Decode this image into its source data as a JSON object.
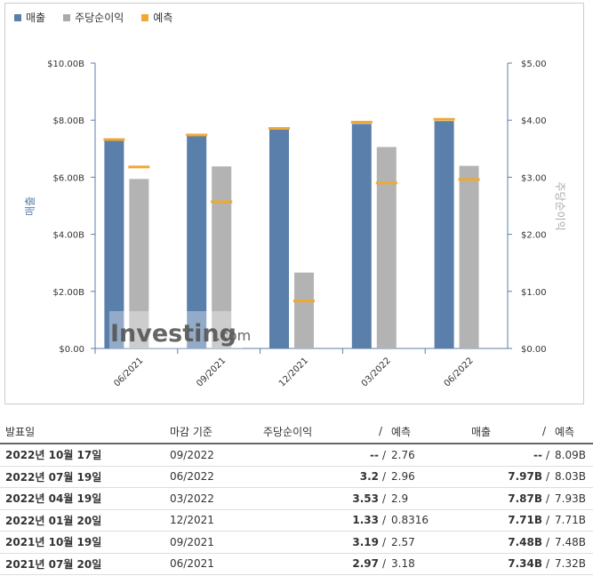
{
  "legend": [
    {
      "label": "매출",
      "color": "#5a7fab"
    },
    {
      "label": "주당순이익",
      "color": "#aaaaaa"
    },
    {
      "label": "예측",
      "color": "#f0a830"
    }
  ],
  "chart_data": {
    "type": "bar",
    "title": "",
    "categories": [
      "06/2021",
      "09/2021",
      "12/2021",
      "03/2022",
      "06/2022"
    ],
    "left_axis": {
      "label": "매출",
      "ticks": [
        "$0.00",
        "$2.00B",
        "$4.00B",
        "$6.00B",
        "$8.00B",
        "$10.00B"
      ],
      "range": [
        0,
        10
      ]
    },
    "right_axis": {
      "label": "주당순이익",
      "ticks": [
        "$0.00",
        "$1.00",
        "$2.00",
        "$3.00",
        "$4.00",
        "$5.00"
      ],
      "range": [
        0,
        5
      ]
    },
    "series": [
      {
        "name": "매출",
        "axis": "left",
        "values": [
          7.34,
          7.48,
          7.71,
          7.87,
          7.97
        ],
        "forecast": [
          7.32,
          7.48,
          7.71,
          7.93,
          8.03
        ]
      },
      {
        "name": "주당순이익",
        "axis": "right",
        "values": [
          2.97,
          3.19,
          1.33,
          3.53,
          3.2
        ],
        "forecast": [
          3.18,
          2.57,
          0.8316,
          2.9,
          2.96
        ]
      }
    ],
    "grid": false,
    "legend_position": "top-left"
  },
  "watermark": {
    "brand": "Investing",
    "suffix": ".com"
  },
  "table": {
    "headers": {
      "date": "발표일",
      "period": "마감 기준",
      "eps": "주당순이익",
      "eps_slash": "/",
      "eps_forecast": "예측",
      "revenue": "매출",
      "rev_slash": "/",
      "rev_forecast": "예측"
    },
    "rows": [
      {
        "date": "2022년 10월 17일",
        "period": "09/2022",
        "eps": "--",
        "eps_color": "dark",
        "eps_forecast": "2.76",
        "revenue": "--",
        "rev_color": "dark",
        "rev_forecast": "8.09B"
      },
      {
        "date": "2022년 07월 19일",
        "period": "06/2022",
        "eps": "3.2",
        "eps_color": "red",
        "eps_forecast": "2.96",
        "revenue": "7.97B",
        "rev_color": "blue",
        "rev_forecast": "8.03B"
      },
      {
        "date": "2022년 04월 19일",
        "period": "03/2022",
        "eps": "3.53",
        "eps_color": "red",
        "eps_forecast": "2.9",
        "revenue": "7.87B",
        "rev_color": "blue",
        "rev_forecast": "7.93B"
      },
      {
        "date": "2022년 01월 20일",
        "period": "12/2021",
        "eps": "1.33",
        "eps_color": "red",
        "eps_forecast": "0.8316",
        "revenue": "7.71B",
        "rev_color": "dark",
        "rev_forecast": "7.71B"
      },
      {
        "date": "2021년 10월 19일",
        "period": "09/2021",
        "eps": "3.19",
        "eps_color": "red",
        "eps_forecast": "2.57",
        "revenue": "7.48B",
        "rev_color": "dark",
        "rev_forecast": "7.48B"
      },
      {
        "date": "2021년 07월 20일",
        "period": "06/2021",
        "eps": "2.97",
        "eps_color": "blue",
        "eps_forecast": "3.18",
        "revenue": "7.34B",
        "rev_color": "red",
        "rev_forecast": "7.32B"
      }
    ]
  }
}
